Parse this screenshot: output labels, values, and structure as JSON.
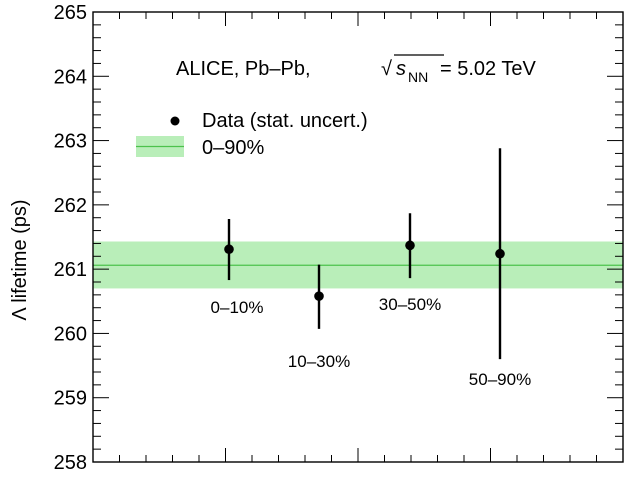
{
  "chart_data": {
    "type": "scatter",
    "title": "",
    "xlabel": "",
    "ylabel": "Λ lifetime (ps)",
    "ylim": [
      258,
      265
    ],
    "yticks": [
      "258",
      "259",
      "260",
      "261",
      "262",
      "263",
      "264",
      "265"
    ],
    "annotation": {
      "prefix": "ALICE, Pb–Pb, ",
      "sqrt_symbol": "√",
      "var": "s",
      "subscript": "NN",
      "suffix": " = 5.02 TeV"
    },
    "legend": {
      "position": "top-left",
      "entries": [
        {
          "label": "Data (stat. uncert.)",
          "marker": "point"
        },
        {
          "label": "0–90%",
          "marker": "band"
        }
      ]
    },
    "points": [
      {
        "label": "0–10%",
        "y": 261.31,
        "err_low": 0.48,
        "err_high": 0.47
      },
      {
        "label": "10–30%",
        "y": 260.58,
        "err_low": 0.51,
        "err_high": 0.49
      },
      {
        "label": "30–50%",
        "y": 261.37,
        "err_low": 0.51,
        "err_high": 0.5
      },
      {
        "label": "50–90%",
        "y": 261.24,
        "err_low": 1.64,
        "err_high": 1.64
      }
    ],
    "band": {
      "label": "0–90%",
      "center": 261.06,
      "low": 260.7,
      "high": 261.43
    },
    "colors": {
      "band_fill": "#b9eeb9",
      "band_line": "#4cc24c",
      "marker": "#000000"
    }
  }
}
